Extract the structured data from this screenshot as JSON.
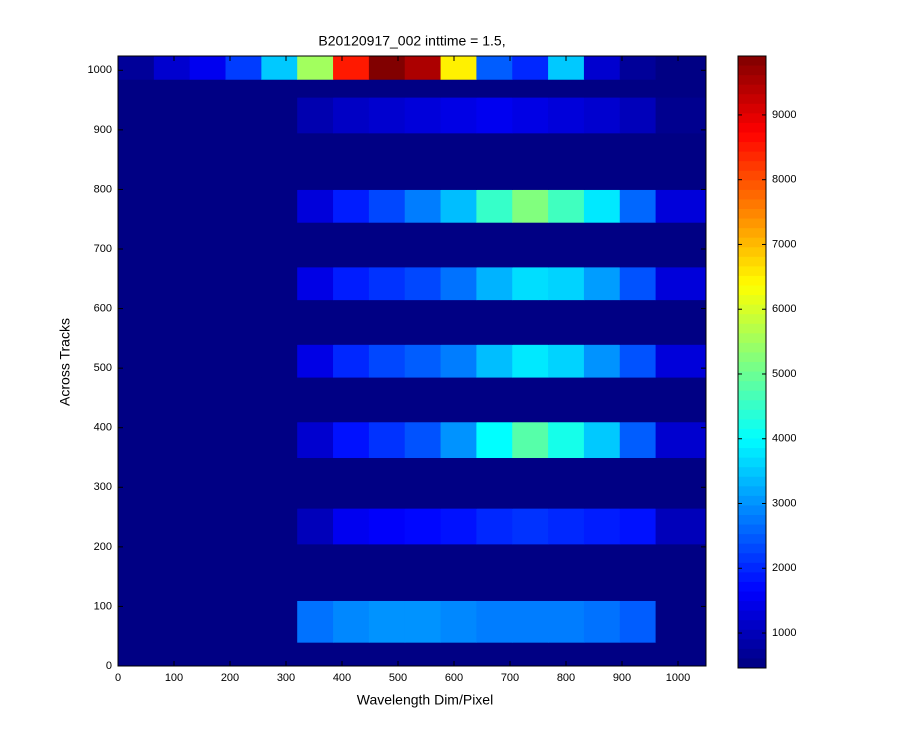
{
  "chart_data": {
    "type": "heatmap",
    "title": "B20120917_002 inttime = 1.5,",
    "xlabel": "Wavelength Dim/Pixel",
    "ylabel": "Across Tracks",
    "colormap": "jet",
    "xlim": [
      0,
      1050
    ],
    "ylim": [
      0,
      1024
    ],
    "xticks": [
      0,
      100,
      200,
      300,
      400,
      500,
      600,
      700,
      800,
      900,
      1000
    ],
    "yticks": [
      0,
      100,
      200,
      300,
      400,
      500,
      600,
      700,
      800,
      900,
      1000
    ],
    "clim": [
      460,
      9910
    ],
    "cticks": [
      1000,
      2000,
      3000,
      4000,
      5000,
      6000,
      7000,
      8000,
      9000
    ],
    "x_edges": [
      0,
      64,
      128,
      192,
      256,
      320,
      384,
      448,
      512,
      576,
      640,
      704,
      768,
      832,
      896,
      960,
      1050
    ],
    "y_edges": [
      0,
      40,
      110,
      205,
      265,
      350,
      410,
      485,
      540,
      615,
      670,
      745,
      800,
      895,
      955,
      985,
      1024
    ],
    "values": [
      [
        500,
        500,
        500,
        500,
        500,
        500,
        500,
        500,
        500,
        500,
        500,
        500,
        500,
        500,
        500,
        500
      ],
      [
        500,
        500,
        500,
        500,
        500,
        2700,
        2900,
        3000,
        3000,
        2900,
        2800,
        2800,
        2800,
        2700,
        2500,
        500
      ],
      [
        500,
        500,
        500,
        500,
        500,
        500,
        500,
        500,
        500,
        500,
        500,
        500,
        500,
        500,
        500,
        500
      ],
      [
        500,
        500,
        500,
        500,
        500,
        1000,
        1500,
        1600,
        1700,
        1800,
        2000,
        2100,
        2000,
        1900,
        1800,
        1000
      ],
      [
        500,
        500,
        500,
        500,
        500,
        500,
        500,
        500,
        500,
        500,
        500,
        500,
        500,
        500,
        500,
        500
      ],
      [
        500,
        500,
        500,
        500,
        500,
        1200,
        1800,
        2100,
        2400,
        3000,
        4000,
        4800,
        4200,
        3500,
        2500,
        1200
      ],
      [
        500,
        500,
        500,
        500,
        500,
        500,
        500,
        500,
        500,
        500,
        500,
        500,
        500,
        500,
        500,
        500
      ],
      [
        500,
        500,
        500,
        500,
        500,
        1400,
        2000,
        2300,
        2500,
        2800,
        3400,
        3800,
        3600,
        3000,
        2400,
        1300
      ],
      [
        500,
        500,
        500,
        500,
        500,
        500,
        500,
        500,
        500,
        500,
        500,
        500,
        500,
        500,
        500,
        500
      ],
      [
        500,
        500,
        500,
        500,
        500,
        1400,
        1900,
        2100,
        2300,
        2700,
        3300,
        3700,
        3600,
        3100,
        2400,
        1300
      ],
      [
        500,
        500,
        500,
        500,
        500,
        500,
        500,
        500,
        500,
        500,
        500,
        500,
        500,
        500,
        500,
        500
      ],
      [
        500,
        500,
        500,
        500,
        500,
        1300,
        1900,
        2300,
        2800,
        3400,
        4500,
        5200,
        4600,
        3800,
        2600,
        1300
      ],
      [
        500,
        500,
        500,
        500,
        500,
        500,
        500,
        500,
        500,
        500,
        500,
        500,
        500,
        500,
        500,
        500
      ],
      [
        500,
        500,
        500,
        500,
        500,
        900,
        1100,
        1200,
        1300,
        1400,
        1500,
        1400,
        1300,
        1200,
        1000,
        600
      ],
      [
        500,
        500,
        500,
        500,
        500,
        500,
        500,
        500,
        500,
        500,
        500,
        500,
        500,
        500,
        500,
        500
      ],
      [
        700,
        1200,
        1500,
        2200,
        3500,
        5500,
        8500,
        9900,
        9500,
        6500,
        2500,
        2000,
        3500,
        1200,
        700,
        500
      ]
    ]
  }
}
